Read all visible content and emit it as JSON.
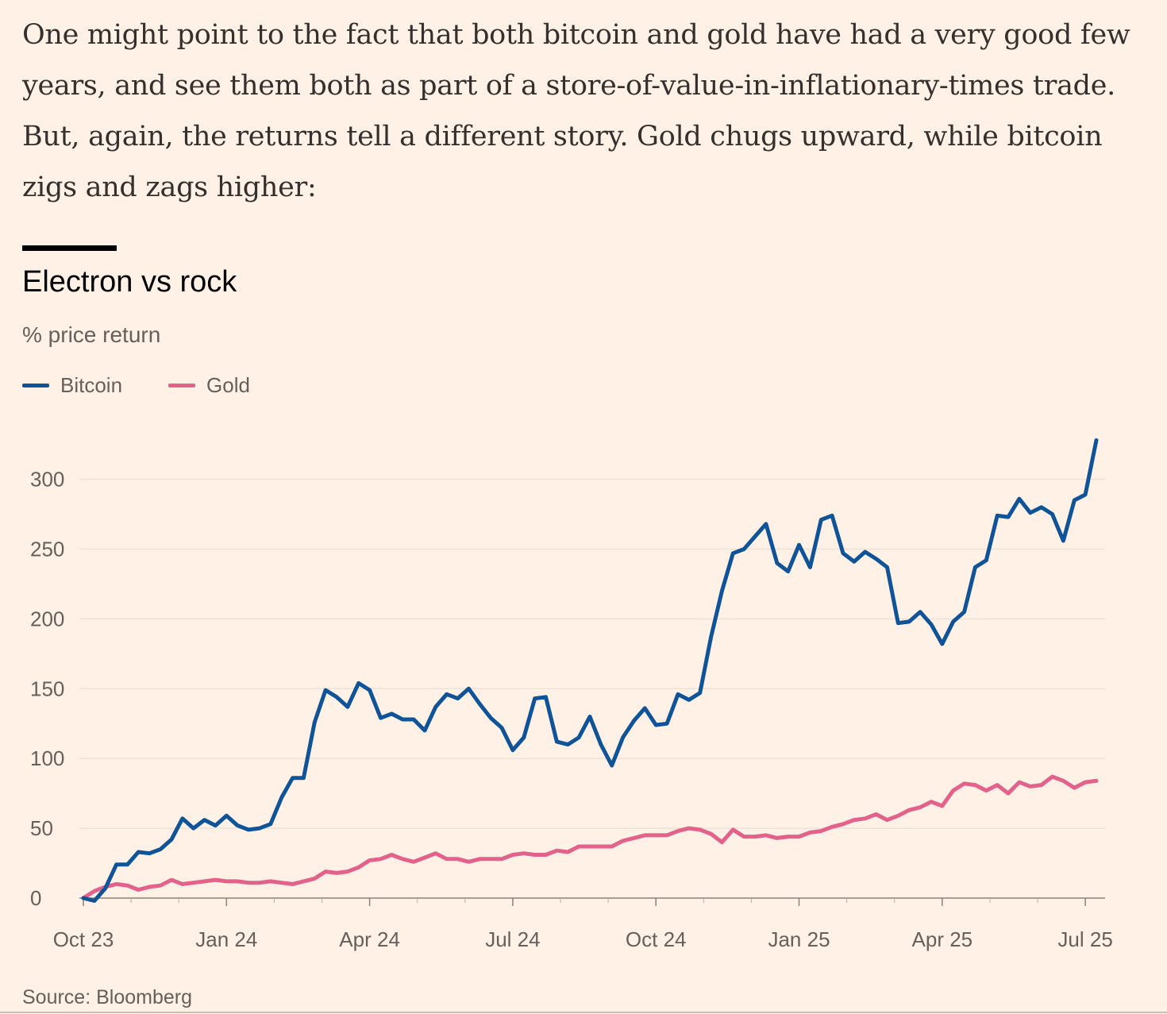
{
  "article": {
    "paragraph": "One might point to the fact that both bitcoin and gold have had a very good few years, and see them both as part of a store-of-value-in-inflationary-times trade. But, again, the returns tell a different story. Gold chugs upward, while bitcoin zigs and zags higher:"
  },
  "chart_data": {
    "type": "line",
    "title": "Electron vs rock",
    "subtitle": "% price return",
    "source": "Source: Bloomberg",
    "ylim": [
      -10,
      330
    ],
    "yticks": [
      0,
      50,
      100,
      150,
      200,
      250,
      300
    ],
    "xticks": [
      "Oct 23",
      "Jan 24",
      "Apr 24",
      "Jul 24",
      "Oct 24",
      "Jan 25",
      "Apr 25",
      "Jul 25"
    ],
    "grid": true,
    "legend_position": "top-left",
    "colors": {
      "Bitcoin": "#0f5499",
      "Gold": "#e3628c"
    },
    "series": [
      {
        "name": "Bitcoin",
        "values": [
          0,
          -2,
          7,
          24,
          24,
          33,
          32,
          35,
          42,
          57,
          50,
          56,
          52,
          59,
          52,
          49,
          50,
          53,
          72,
          86,
          86,
          126,
          149,
          144,
          137,
          154,
          149,
          129,
          132,
          128,
          128,
          120,
          137,
          146,
          143,
          150,
          139,
          129,
          122,
          106,
          115,
          143,
          144,
          112,
          110,
          115,
          130,
          110,
          95,
          115,
          127,
          136,
          124,
          125,
          146,
          142,
          147,
          187,
          220,
          247,
          250,
          259,
          268,
          240,
          234,
          253,
          237,
          271,
          274,
          247,
          241,
          248,
          243,
          237,
          197,
          198,
          205,
          196,
          182,
          198,
          205,
          237,
          242,
          274,
          273,
          286,
          276,
          280,
          275,
          256,
          285,
          289,
          328
        ]
      },
      {
        "name": "Gold",
        "values": [
          0,
          5,
          8,
          10,
          9,
          6,
          8,
          9,
          13,
          10,
          11,
          12,
          13,
          12,
          12,
          11,
          11,
          12,
          11,
          10,
          12,
          14,
          19,
          18,
          19,
          22,
          27,
          28,
          31,
          28,
          26,
          29,
          32,
          28,
          28,
          26,
          28,
          28,
          28,
          31,
          32,
          31,
          31,
          34,
          33,
          37,
          37,
          37,
          37,
          41,
          43,
          45,
          45,
          45,
          48,
          50,
          49,
          46,
          40,
          49,
          44,
          44,
          45,
          43,
          44,
          44,
          47,
          48,
          51,
          53,
          56,
          57,
          60,
          56,
          59,
          63,
          65,
          69,
          66,
          77,
          82,
          81,
          77,
          81,
          75,
          83,
          80,
          81,
          87,
          84,
          79,
          83,
          84
        ]
      }
    ]
  }
}
